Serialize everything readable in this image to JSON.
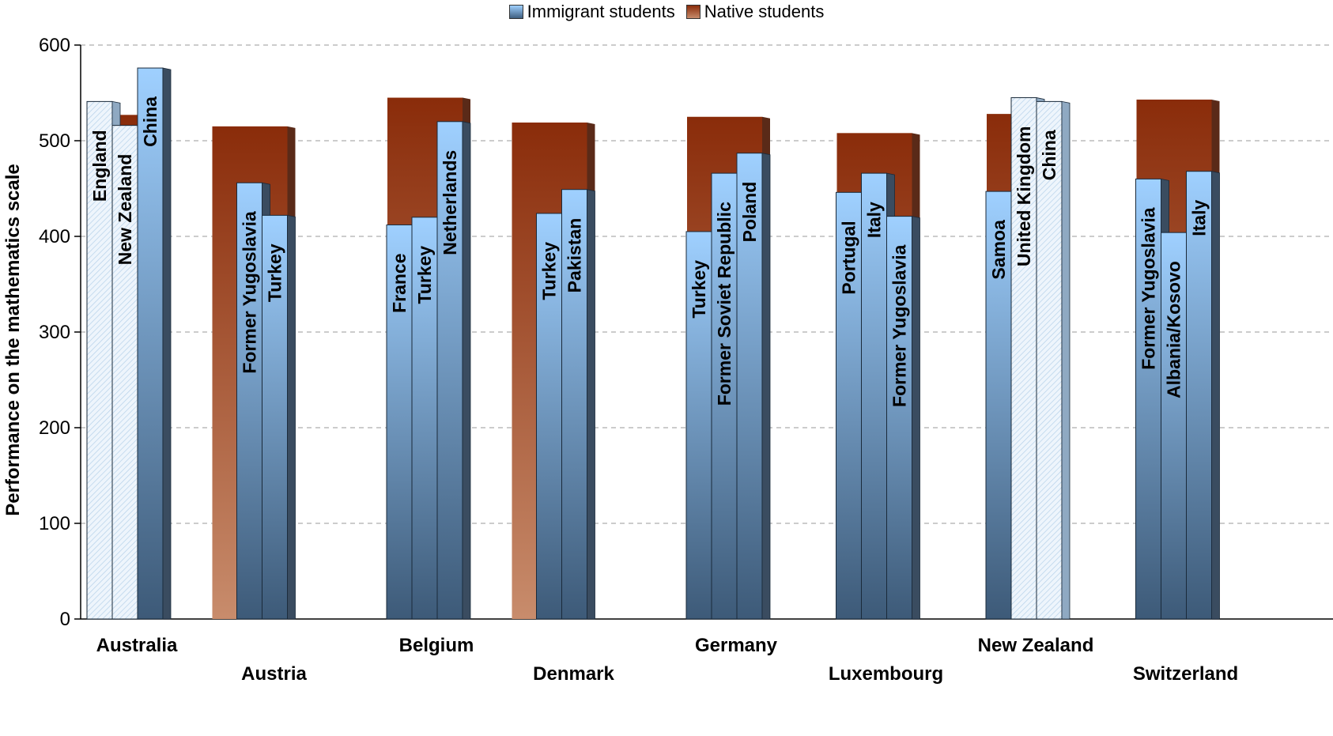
{
  "chart_data": {
    "type": "bar",
    "title": "",
    "xlabel": "",
    "ylabel": "Performance on the mathematics scale",
    "ylim": [
      0,
      600
    ],
    "yticks": [
      0,
      100,
      200,
      300,
      400,
      500,
      600
    ],
    "grid": true,
    "legend": {
      "placement": "top",
      "entries": [
        "Immigrant students",
        "Native students"
      ]
    },
    "colors": {
      "immigrant_top": "#9fd0ff",
      "immigrant_bottom": "#3f5f80",
      "native_top": "#8a2c0a",
      "native_bottom": "#c68a6a",
      "grid": "#999999"
    },
    "groups": [
      {
        "country": "Australia",
        "native": 527,
        "immigrant": [
          {
            "origin": "England",
            "value": 541,
            "hatched": true
          },
          {
            "origin": "New Zealand",
            "value": 516,
            "hatched": true
          },
          {
            "origin": "China",
            "value": 576,
            "hatched": false
          }
        ]
      },
      {
        "country": "Austria",
        "native": 515,
        "immigrant": [
          {
            "origin": "Former Yugoslavia",
            "value": 456,
            "hatched": false
          },
          {
            "origin": "Turkey",
            "value": 422,
            "hatched": false
          }
        ]
      },
      {
        "country": "Belgium",
        "native": 545,
        "immigrant": [
          {
            "origin": "France",
            "value": 412,
            "hatched": false
          },
          {
            "origin": "Turkey",
            "value": 420,
            "hatched": false
          },
          {
            "origin": "Netherlands",
            "value": 520,
            "hatched": false
          }
        ]
      },
      {
        "country": "Denmark",
        "native": 519,
        "immigrant": [
          {
            "origin": "Turkey",
            "value": 424,
            "hatched": false
          },
          {
            "origin": "Pakistan",
            "value": 449,
            "hatched": false
          }
        ]
      },
      {
        "country": "Germany",
        "native": 525,
        "immigrant": [
          {
            "origin": "Turkey",
            "value": 405,
            "hatched": false
          },
          {
            "origin": "Former Soviet Republic",
            "value": 466,
            "hatched": false
          },
          {
            "origin": "Poland",
            "value": 487,
            "hatched": false
          }
        ]
      },
      {
        "country": "Luxembourg",
        "native": 508,
        "immigrant": [
          {
            "origin": "Portugal",
            "value": 446,
            "hatched": false
          },
          {
            "origin": "Italy",
            "value": 466,
            "hatched": false
          },
          {
            "origin": "Former Yugoslavia",
            "value": 421,
            "hatched": false
          }
        ]
      },
      {
        "country": "New Zealand",
        "native": 528,
        "immigrant": [
          {
            "origin": "Samoa",
            "value": 447,
            "hatched": false
          },
          {
            "origin": "United Kingdom",
            "value": 545,
            "hatched": true
          },
          {
            "origin": "China",
            "value": 541,
            "hatched": true
          }
        ]
      },
      {
        "country": "Switzerland",
        "native": 543,
        "immigrant": [
          {
            "origin": "Former Yugoslavia",
            "value": 460,
            "hatched": false
          },
          {
            "origin": "Albania/Kosovo",
            "value": 404,
            "hatched": false
          },
          {
            "origin": "Italy",
            "value": 468,
            "hatched": false
          }
        ]
      }
    ]
  }
}
